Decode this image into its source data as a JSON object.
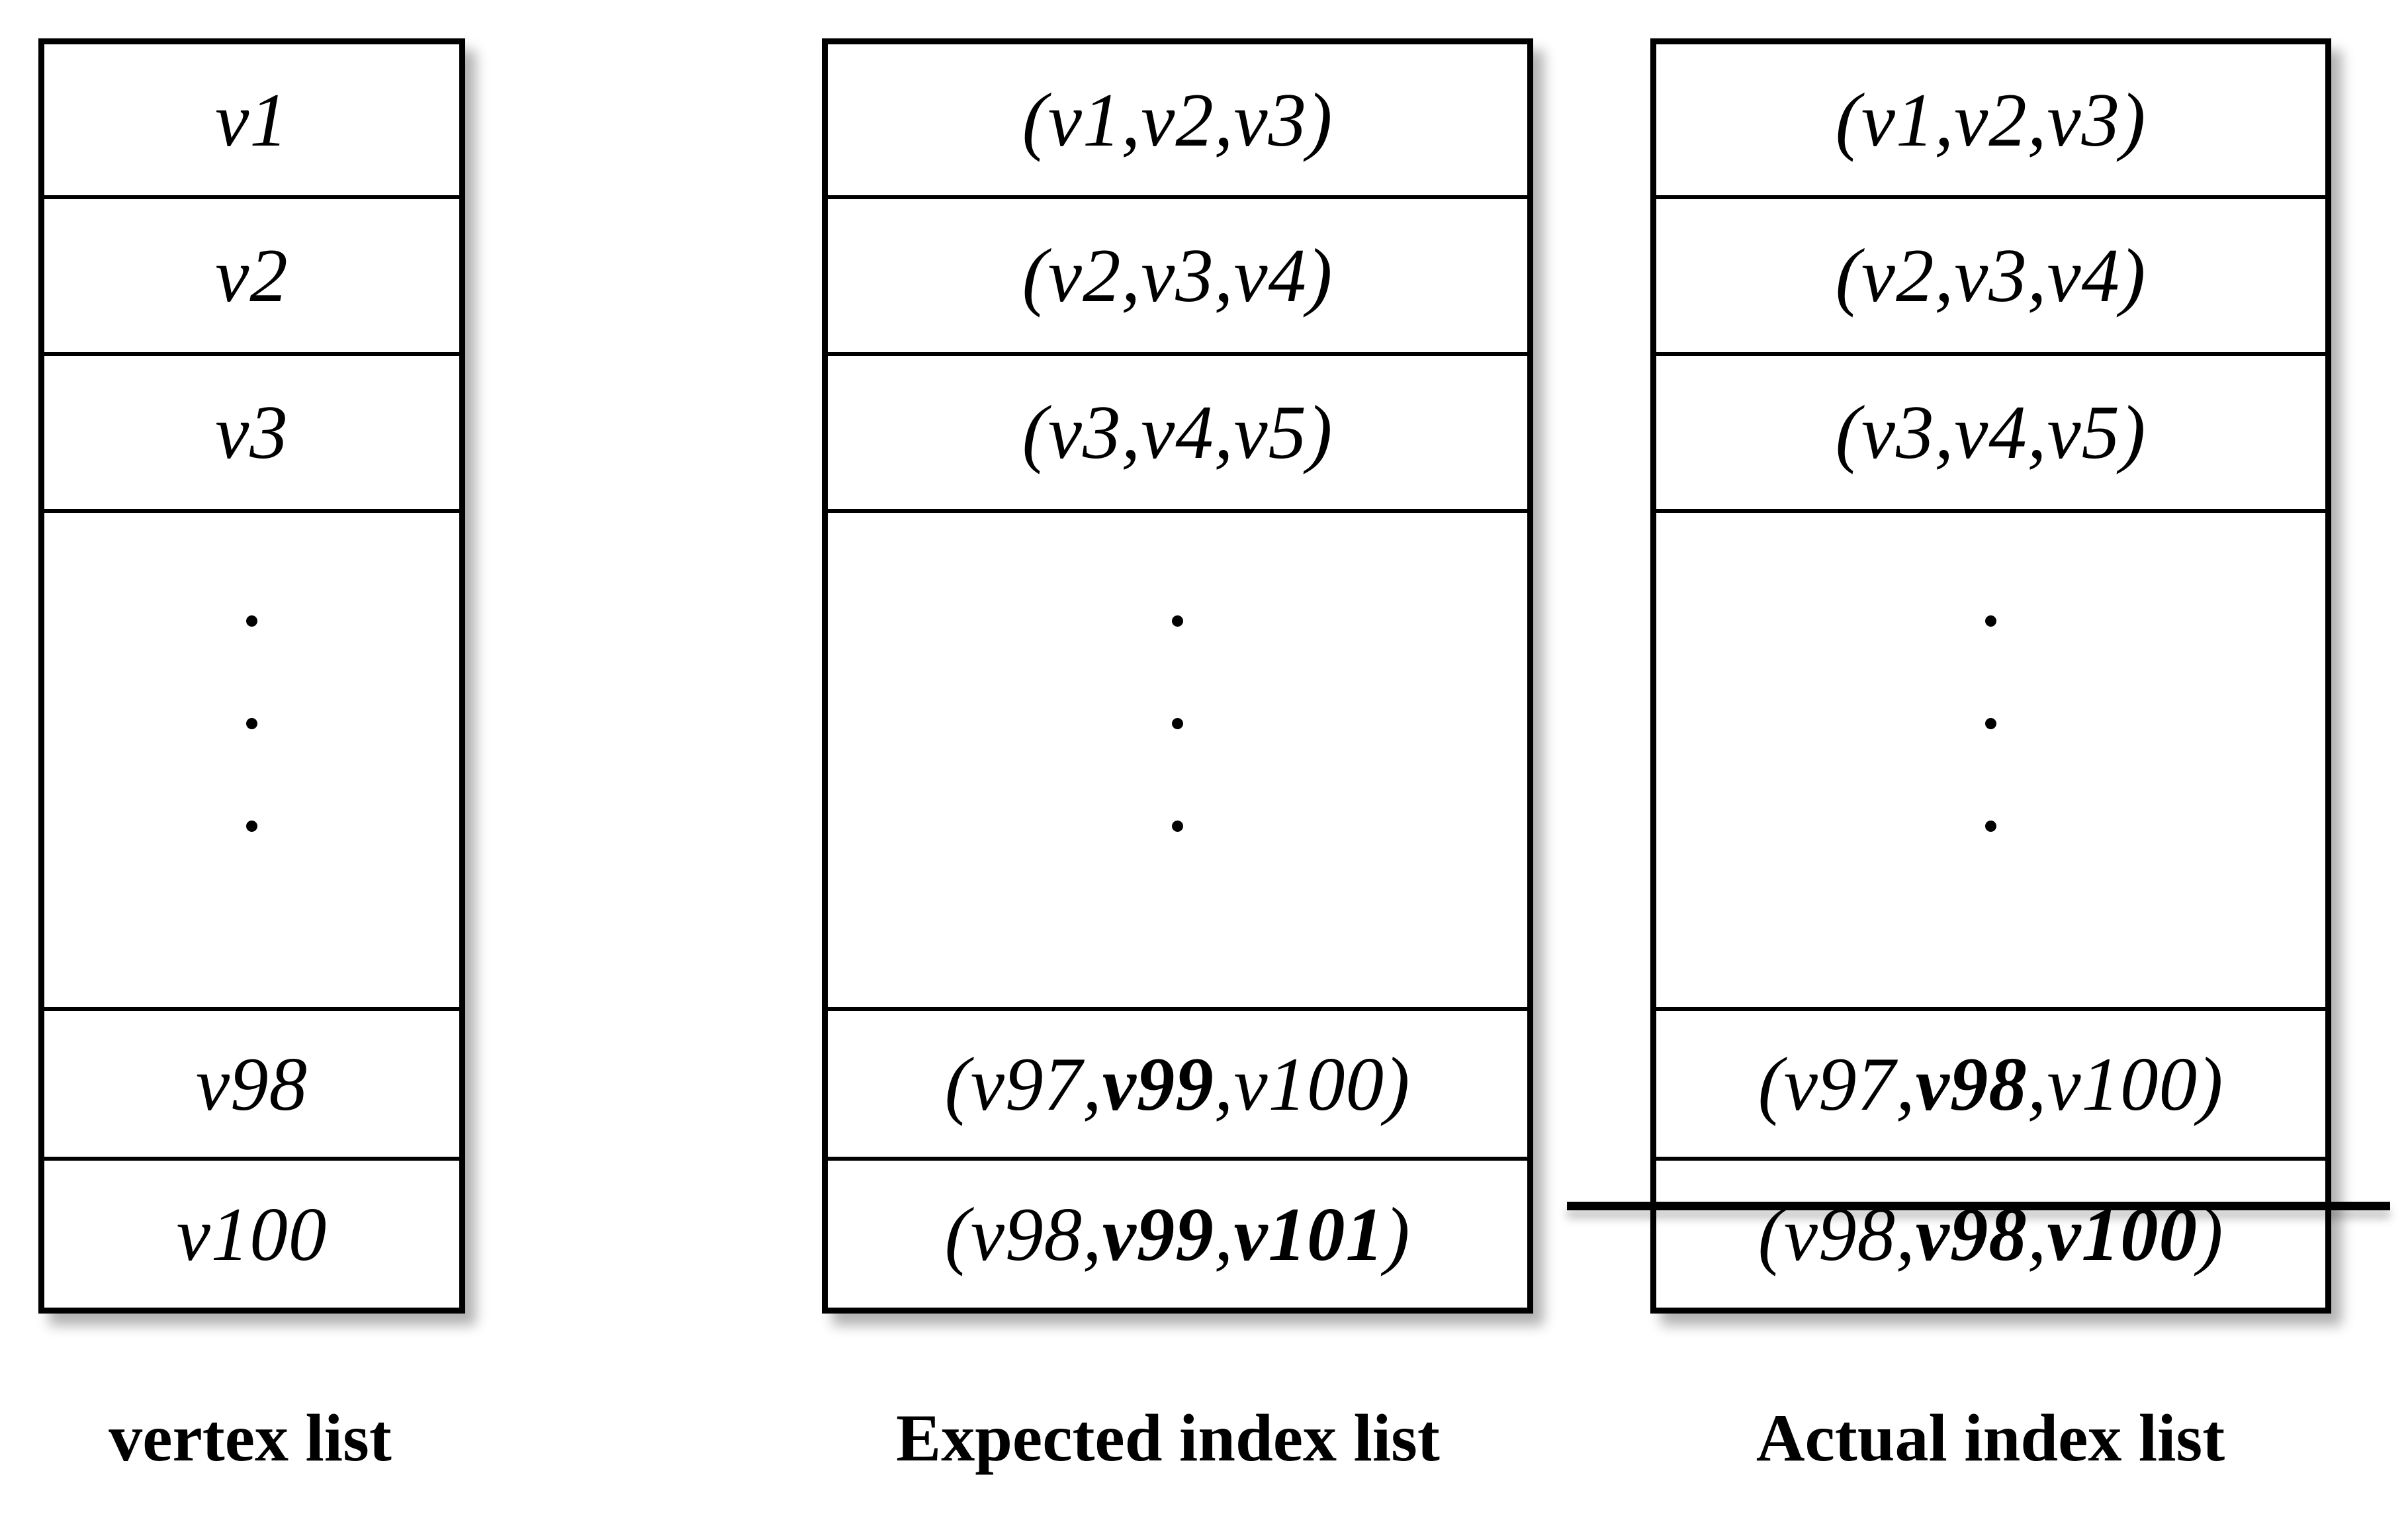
{
  "figure": {
    "description_colors": {
      "line_color": "#000000",
      "background": "#ffffff"
    },
    "dots_per_gap": 3,
    "columns": [
      {
        "id": "vertex-list",
        "label": "vertex list",
        "cells": [
          {
            "type": "text",
            "segments": [
              {
                "text": "v1",
                "bold": false
              }
            ]
          },
          {
            "type": "text",
            "segments": [
              {
                "text": "v2",
                "bold": false
              }
            ]
          },
          {
            "type": "text",
            "segments": [
              {
                "text": "v3",
                "bold": false
              }
            ]
          },
          {
            "type": "dots"
          },
          {
            "type": "text",
            "segments": [
              {
                "text": "v98",
                "bold": false
              }
            ]
          },
          {
            "type": "text",
            "segments": [
              {
                "text": "v100",
                "bold": false
              }
            ]
          }
        ]
      },
      {
        "id": "expected-index-list",
        "label": "Expected index list",
        "cells": [
          {
            "type": "text",
            "segments": [
              {
                "text": "(v1,v2,v3)",
                "bold": false
              }
            ]
          },
          {
            "type": "text",
            "segments": [
              {
                "text": "(v2,v3,v4)",
                "bold": false
              }
            ]
          },
          {
            "type": "text",
            "segments": [
              {
                "text": "(v3,v4,v5)",
                "bold": false
              }
            ]
          },
          {
            "type": "dots"
          },
          {
            "type": "text",
            "segments": [
              {
                "text": "(v97,",
                "bold": false
              },
              {
                "text": "v99",
                "bold": true
              },
              {
                "text": ",v100)",
                "bold": false
              }
            ]
          },
          {
            "type": "text",
            "segments": [
              {
                "text": "(v98,",
                "bold": false
              },
              {
                "text": "v99",
                "bold": true
              },
              {
                "text": ",",
                "bold": false
              },
              {
                "text": "v101",
                "bold": true
              },
              {
                "text": ")",
                "bold": false
              }
            ]
          }
        ]
      },
      {
        "id": "actual-index-list",
        "label": "Actual index list",
        "cells": [
          {
            "type": "text",
            "segments": [
              {
                "text": "(v1,v2,v3)",
                "bold": false
              }
            ]
          },
          {
            "type": "text",
            "segments": [
              {
                "text": "(v2,v3,v4)",
                "bold": false
              }
            ]
          },
          {
            "type": "text",
            "segments": [
              {
                "text": "(v3,v4,v5)",
                "bold": false
              }
            ]
          },
          {
            "type": "dots"
          },
          {
            "type": "text",
            "segments": [
              {
                "text": "(v97,",
                "bold": false
              },
              {
                "text": "v98",
                "bold": true
              },
              {
                "text": ",v100)",
                "bold": false
              }
            ]
          },
          {
            "type": "text",
            "struck": true,
            "segments": [
              {
                "text": "(v98,",
                "bold": false
              },
              {
                "text": "v98",
                "bold": true
              },
              {
                "text": ",",
                "bold": false
              },
              {
                "text": "v100",
                "bold": true
              },
              {
                "text": ")",
                "bold": false
              }
            ]
          }
        ]
      }
    ],
    "strikethrough": {
      "target": "actual-index-list-last-cell",
      "color": "#000000"
    }
  }
}
